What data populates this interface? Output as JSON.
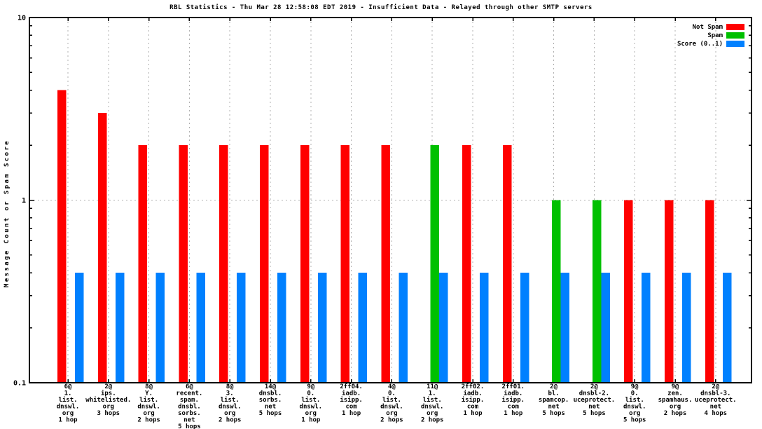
{
  "chart_data": {
    "type": "bar",
    "title": "RBL Statistics - Thu Mar 28 12:58:08 EDT 2019 - Insufficient Data - Relayed through other SMTP servers",
    "ylabel": "Message Count or Spam Score",
    "xlabel": "",
    "y_scale": "log",
    "ylim": [
      0.1,
      10
    ],
    "y_ticks": [
      {
        "value": 10,
        "label": "10"
      },
      {
        "value": 1,
        "label": "1"
      },
      {
        "value": 0.1,
        "label": "0.1"
      }
    ],
    "grid": {
      "vertical_per_category": true,
      "horizontal_at": [
        1
      ],
      "color": "#b0b0b0",
      "style": "dotted"
    },
    "legend_position": "top-right-inside",
    "categories": [
      [
        "6@",
        "1.",
        "list.",
        "dnswl.",
        "org",
        "1 hop"
      ],
      [
        "2@",
        "ips.",
        "whitelisted.",
        "org",
        "3 hops"
      ],
      [
        "8@",
        "Y.",
        "list.",
        "dnswl.",
        "org",
        "2 hops"
      ],
      [
        "6@",
        "recent.",
        "spam.",
        "dnsbl.",
        "sorbs.",
        "net",
        "5 hops"
      ],
      [
        "8@",
        "3.",
        "list.",
        "dnswl.",
        "org",
        "2 hops"
      ],
      [
        "14@",
        "dnsbl.",
        "sorbs.",
        "net",
        "5 hops"
      ],
      [
        "9@",
        "0.",
        "list.",
        "dnswl.",
        "org",
        "1 hop"
      ],
      [
        "2ff04.",
        "iadb.",
        "isipp.",
        "com",
        "1 hop"
      ],
      [
        "4@",
        "0.",
        "list.",
        "dnswl.",
        "org",
        "2 hops"
      ],
      [
        "11@",
        "1.",
        "list.",
        "dnswl.",
        "org",
        "2 hops"
      ],
      [
        "2ff02.",
        "iadb.",
        "isipp.",
        "com",
        "1 hop"
      ],
      [
        "2ff01.",
        "iadb.",
        "isipp.",
        "com",
        "1 hop"
      ],
      [
        "2@",
        "bl.",
        "spamcop.",
        "net",
        "5 hops"
      ],
      [
        "2@",
        "dnsbl-2.",
        "uceprotect.",
        "net",
        "5 hops"
      ],
      [
        "9@",
        "0.",
        "list.",
        "dnswl.",
        "org",
        "5 hops"
      ],
      [
        "9@",
        "zen.",
        "spamhaus.",
        "org",
        "2 hops"
      ],
      [
        "2@",
        "dnsbl-3.",
        "uceprotect.",
        "net",
        "4 hops"
      ]
    ],
    "series": [
      {
        "name": "Not Spam",
        "color": "#ff0000",
        "values": [
          4,
          3,
          2,
          2,
          2,
          2,
          2,
          2,
          2,
          0,
          2,
          2,
          0,
          0,
          1,
          1,
          1
        ]
      },
      {
        "name": "Spam",
        "color": "#00c000",
        "values": [
          0,
          0,
          0,
          0,
          0,
          0,
          0,
          0,
          0,
          2,
          0,
          0,
          1,
          1,
          0,
          0,
          0
        ]
      },
      {
        "name": "Score (0..1)",
        "color": "#0080ff",
        "values": [
          0.4,
          0.4,
          0.4,
          0.4,
          0.4,
          0.4,
          0.4,
          0.4,
          0.4,
          0.4,
          0.4,
          0.4,
          0.4,
          0.4,
          0.4,
          0.4,
          0.4
        ]
      }
    ]
  }
}
